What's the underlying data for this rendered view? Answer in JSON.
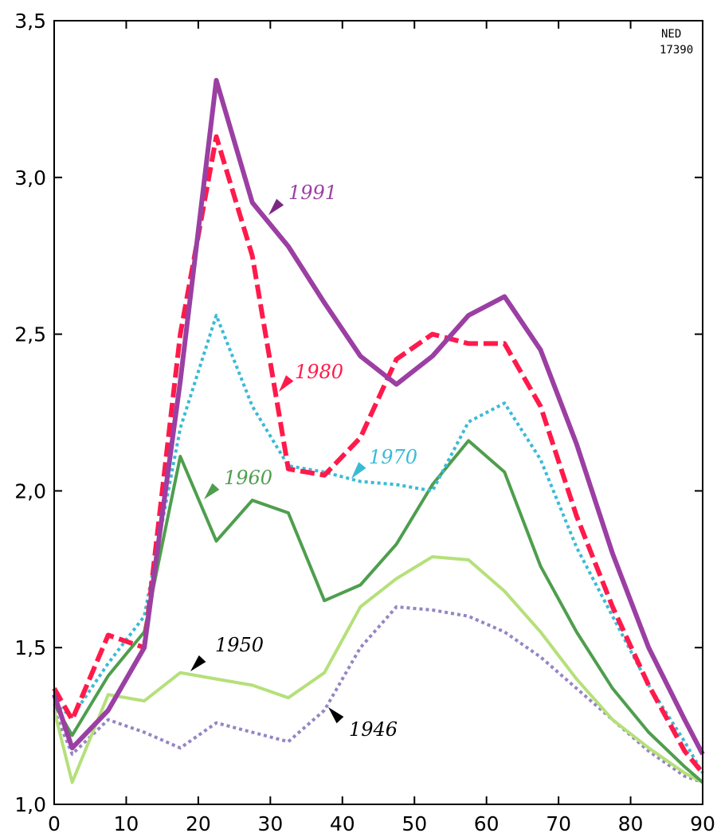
{
  "chart_data": {
    "type": "line",
    "title": "",
    "xlabel": "",
    "ylabel": "",
    "xlim": [
      0,
      90
    ],
    "ylim": [
      1.0,
      3.5
    ],
    "x_ticks": [
      0,
      10,
      20,
      30,
      40,
      50,
      60,
      70,
      80,
      90
    ],
    "x_tick_labels": [
      "0",
      "10",
      "20",
      "30",
      "40",
      "50",
      "60",
      "70",
      "80",
      "90"
    ],
    "y_ticks": [
      1.0,
      1.5,
      2.0,
      2.5,
      3.0,
      3.5
    ],
    "y_tick_labels": [
      "1,0",
      "1,5",
      "2,0",
      "2,5",
      "3,0",
      "3,5"
    ],
    "grid": false,
    "note_lines": [
      "NED",
      "17390"
    ],
    "series": [
      {
        "name": "1946",
        "color": "#9585c4",
        "style": "dotted",
        "x": [
          0,
          2.5,
          7.5,
          12.5,
          17.5,
          22.5,
          27.5,
          32.5,
          37.5,
          42.5,
          47.5,
          52.5,
          57.5,
          62.5,
          67.5,
          72.5,
          77.5,
          82.5,
          87.5,
          90
        ],
        "y": [
          1.3,
          1.16,
          1.27,
          1.23,
          1.18,
          1.26,
          1.23,
          1.2,
          1.3,
          1.5,
          1.63,
          1.62,
          1.6,
          1.55,
          1.47,
          1.37,
          1.27,
          1.17,
          1.09,
          1.07
        ]
      },
      {
        "name": "1950",
        "color": "#b5e07a",
        "style": "solid",
        "x": [
          0,
          2.5,
          7.5,
          12.5,
          17.5,
          22.5,
          27.5,
          32.5,
          37.5,
          42.5,
          47.5,
          52.5,
          57.5,
          62.5,
          67.5,
          72.5,
          77.5,
          82.5,
          87.5,
          90
        ],
        "y": [
          1.3,
          1.07,
          1.35,
          1.33,
          1.42,
          1.4,
          1.38,
          1.34,
          1.42,
          1.63,
          1.72,
          1.79,
          1.78,
          1.68,
          1.55,
          1.4,
          1.27,
          1.18,
          1.1,
          1.07
        ]
      },
      {
        "name": "1960",
        "color": "#4e9e4e",
        "style": "solid",
        "x": [
          0,
          2.5,
          7.5,
          12.5,
          17.5,
          22.5,
          27.5,
          32.5,
          37.5,
          42.5,
          47.5,
          52.5,
          57.5,
          62.5,
          67.5,
          72.5,
          77.5,
          82.5,
          87.5,
          90
        ],
        "y": [
          1.32,
          1.22,
          1.41,
          1.55,
          2.11,
          1.84,
          1.97,
          1.93,
          1.65,
          1.7,
          1.83,
          2.02,
          2.16,
          2.06,
          1.76,
          1.55,
          1.37,
          1.23,
          1.12,
          1.07
        ]
      },
      {
        "name": "1970",
        "color": "#3bbad6",
        "style": "dotted",
        "x": [
          0,
          2.5,
          7.5,
          12.5,
          17.5,
          22.5,
          27.5,
          32.5,
          37.5,
          42.5,
          47.5,
          52.5,
          57.5,
          62.5,
          67.5,
          72.5,
          77.5,
          82.5,
          87.5,
          90
        ],
        "y": [
          1.32,
          1.28,
          1.45,
          1.6,
          2.2,
          2.56,
          2.27,
          2.08,
          2.06,
          2.03,
          2.02,
          2.0,
          2.22,
          2.28,
          2.1,
          1.82,
          1.6,
          1.38,
          1.2,
          1.1
        ]
      },
      {
        "name": "1980",
        "color": "#ff1a4b",
        "style": "dashed",
        "x": [
          0,
          2.5,
          7.5,
          12.5,
          17.5,
          22.5,
          27.5,
          32.5,
          37.5,
          42.5,
          47.5,
          52.5,
          57.5,
          62.5,
          67.5,
          72.5,
          77.5,
          82.5,
          87.5,
          90
        ],
        "y": [
          1.37,
          1.27,
          1.54,
          1.5,
          2.5,
          3.13,
          2.75,
          2.07,
          2.05,
          2.17,
          2.42,
          2.5,
          2.47,
          2.47,
          2.27,
          1.92,
          1.63,
          1.38,
          1.17,
          1.1
        ]
      },
      {
        "name": "1991",
        "color": "#9b3fa3",
        "style": "solid-thick",
        "x": [
          0,
          2.5,
          7.5,
          12.5,
          17.5,
          22.5,
          27.5,
          32.5,
          37.5,
          42.5,
          47.5,
          52.5,
          57.5,
          62.5,
          67.5,
          72.5,
          77.5,
          82.5,
          87.5,
          90
        ],
        "y": [
          1.35,
          1.18,
          1.3,
          1.5,
          2.35,
          3.31,
          2.92,
          2.78,
          2.6,
          2.43,
          2.34,
          2.43,
          2.56,
          2.62,
          2.45,
          2.15,
          1.8,
          1.5,
          1.27,
          1.16
        ]
      }
    ],
    "annotations": [
      {
        "text": "1991",
        "series": "1991"
      },
      {
        "text": "1980",
        "series": "1980"
      },
      {
        "text": "1970",
        "series": "1970"
      },
      {
        "text": "1960",
        "series": "1960"
      },
      {
        "text": "1950",
        "series": "1950"
      },
      {
        "text": "1946",
        "series": "1946"
      }
    ]
  }
}
